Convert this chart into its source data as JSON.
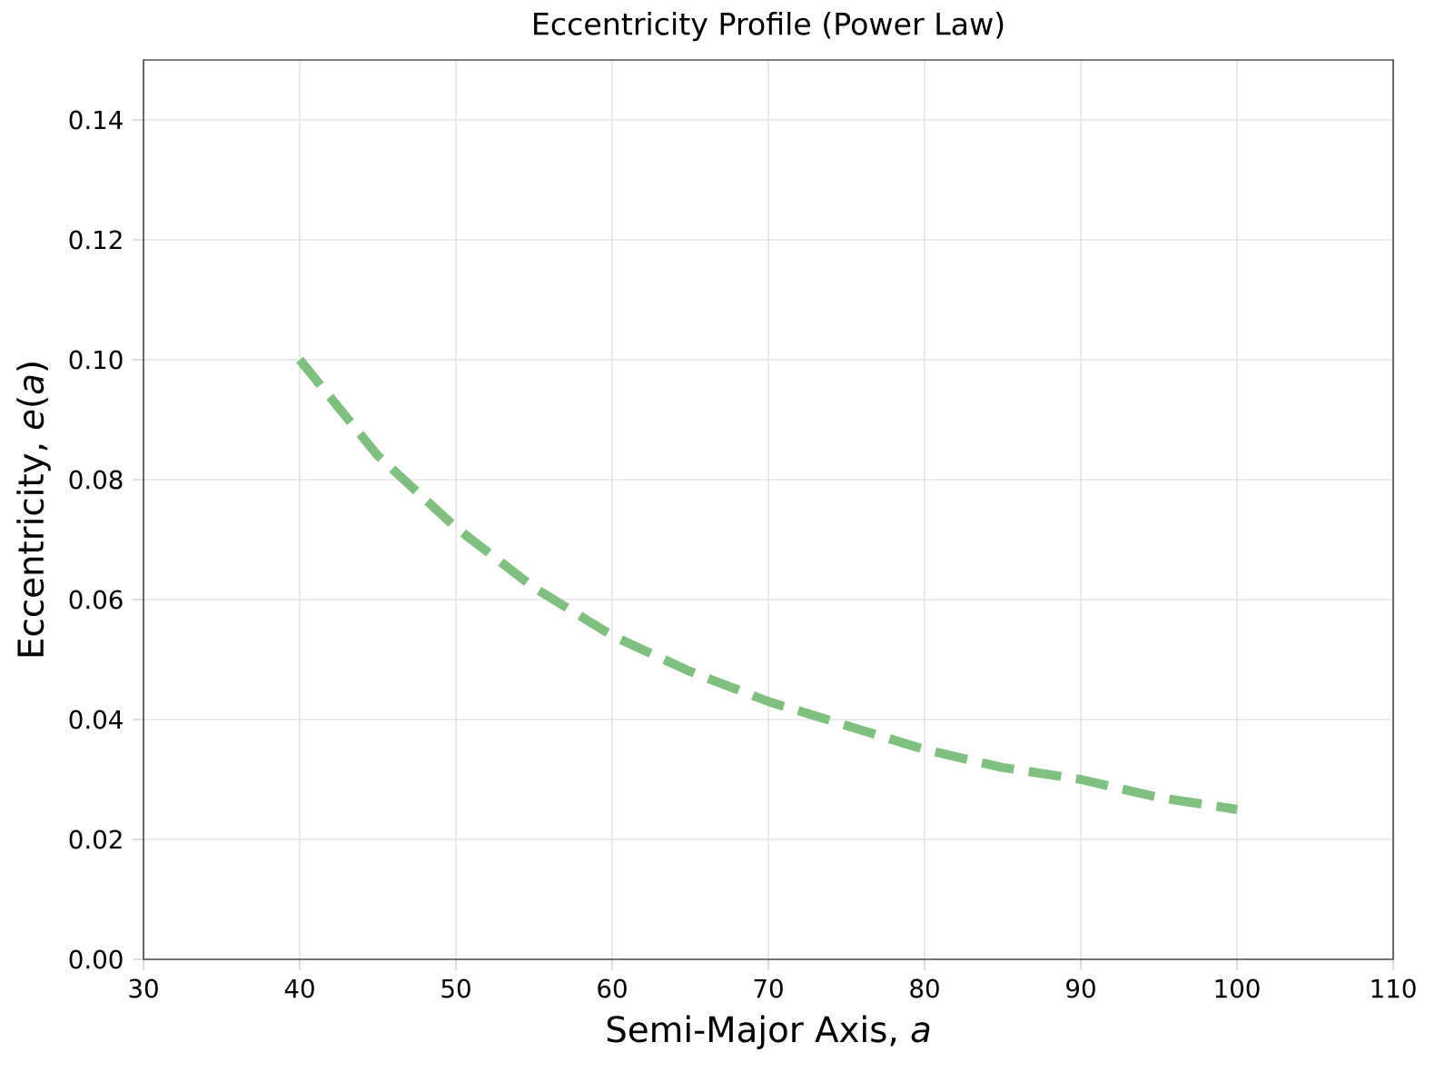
{
  "chart_data": {
    "type": "line",
    "title": "Eccentricity Profile (Power Law)",
    "xlabel": "Semi-Major Axis, *a*",
    "ylabel": "Eccentricity, *e*(*a*)",
    "series": [
      {
        "color": "#7fbf7f",
        "x": [
          40,
          45,
          50,
          55,
          60,
          65,
          70,
          75,
          80,
          85,
          90,
          95,
          100
        ],
        "values": [
          0.1,
          0.084,
          0.072,
          0.062,
          0.054,
          0.048,
          0.043,
          0.039,
          0.035,
          0.032,
          0.03,
          0.027,
          0.025
        ]
      }
    ],
    "xlim": [
      30,
      110
    ],
    "xticks": [
      30,
      40,
      50,
      60,
      70,
      80,
      90,
      100,
      110
    ],
    "ylim": [
      0,
      0.15
    ],
    "yticks": [
      {
        "value": 0,
        "label": "0.00"
      },
      {
        "value": 0.02,
        "label": "0.02"
      },
      {
        "value": 0.04,
        "label": "0.04"
      },
      {
        "value": 0.06,
        "label": "0.06"
      },
      {
        "value": 0.08,
        "label": "0.08"
      },
      {
        "value": 0.1,
        "label": "0.10"
      },
      {
        "value": 0.12,
        "label": "0.12"
      },
      {
        "value": 0.14,
        "label": "0.14"
      }
    ],
    "grid": true,
    "line_style": "dashed",
    "marker": "none"
  }
}
